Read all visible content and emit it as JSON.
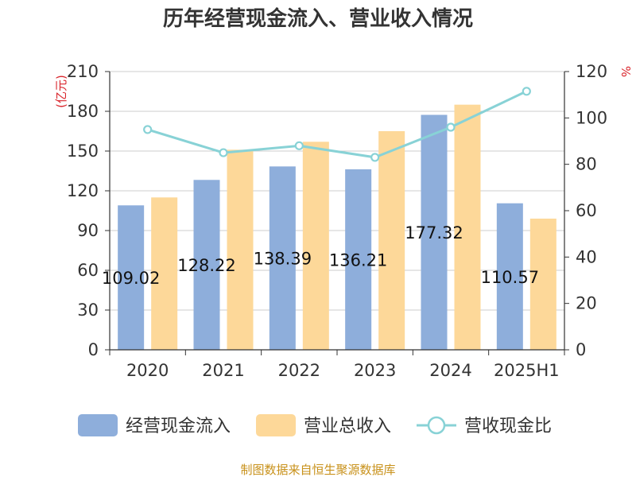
{
  "chart_data": {
    "type": "bar",
    "title": "历年经营现金流入、营业收入情况",
    "categories": [
      "2020",
      "2021",
      "2022",
      "2023",
      "2024",
      "2025H1"
    ],
    "y_left": {
      "label": "(亿元)",
      "ticks": [
        "0",
        "30",
        "60",
        "90",
        "120",
        "150",
        "180",
        "210"
      ],
      "ylim": [
        0,
        210
      ]
    },
    "y_right": {
      "label": "%",
      "ticks": [
        "0",
        "20",
        "40",
        "60",
        "80",
        "100",
        "120"
      ],
      "ylim": [
        0,
        120
      ]
    },
    "series": [
      {
        "name": "经营现金流入",
        "type": "bar",
        "axis": "left",
        "color": "#8eaedb",
        "values": [
          109.02,
          128.22,
          138.39,
          136.21,
          177.32,
          110.57
        ],
        "labels": [
          "109.02",
          "128.22",
          "138.39",
          "136.21",
          "177.32",
          "110.57"
        ]
      },
      {
        "name": "营业总收入",
        "type": "bar",
        "axis": "left",
        "color": "#fdd899",
        "values": [
          115,
          151,
          157,
          165,
          185,
          99
        ]
      },
      {
        "name": "营收现金比",
        "type": "line",
        "axis": "right",
        "color": "#88d2d6",
        "values": [
          95,
          85,
          88,
          83,
          96,
          111.5
        ]
      }
    ],
    "grid": true,
    "legend_position": "bottom"
  },
  "source_note": "制图数据来自恒生聚源数据库"
}
